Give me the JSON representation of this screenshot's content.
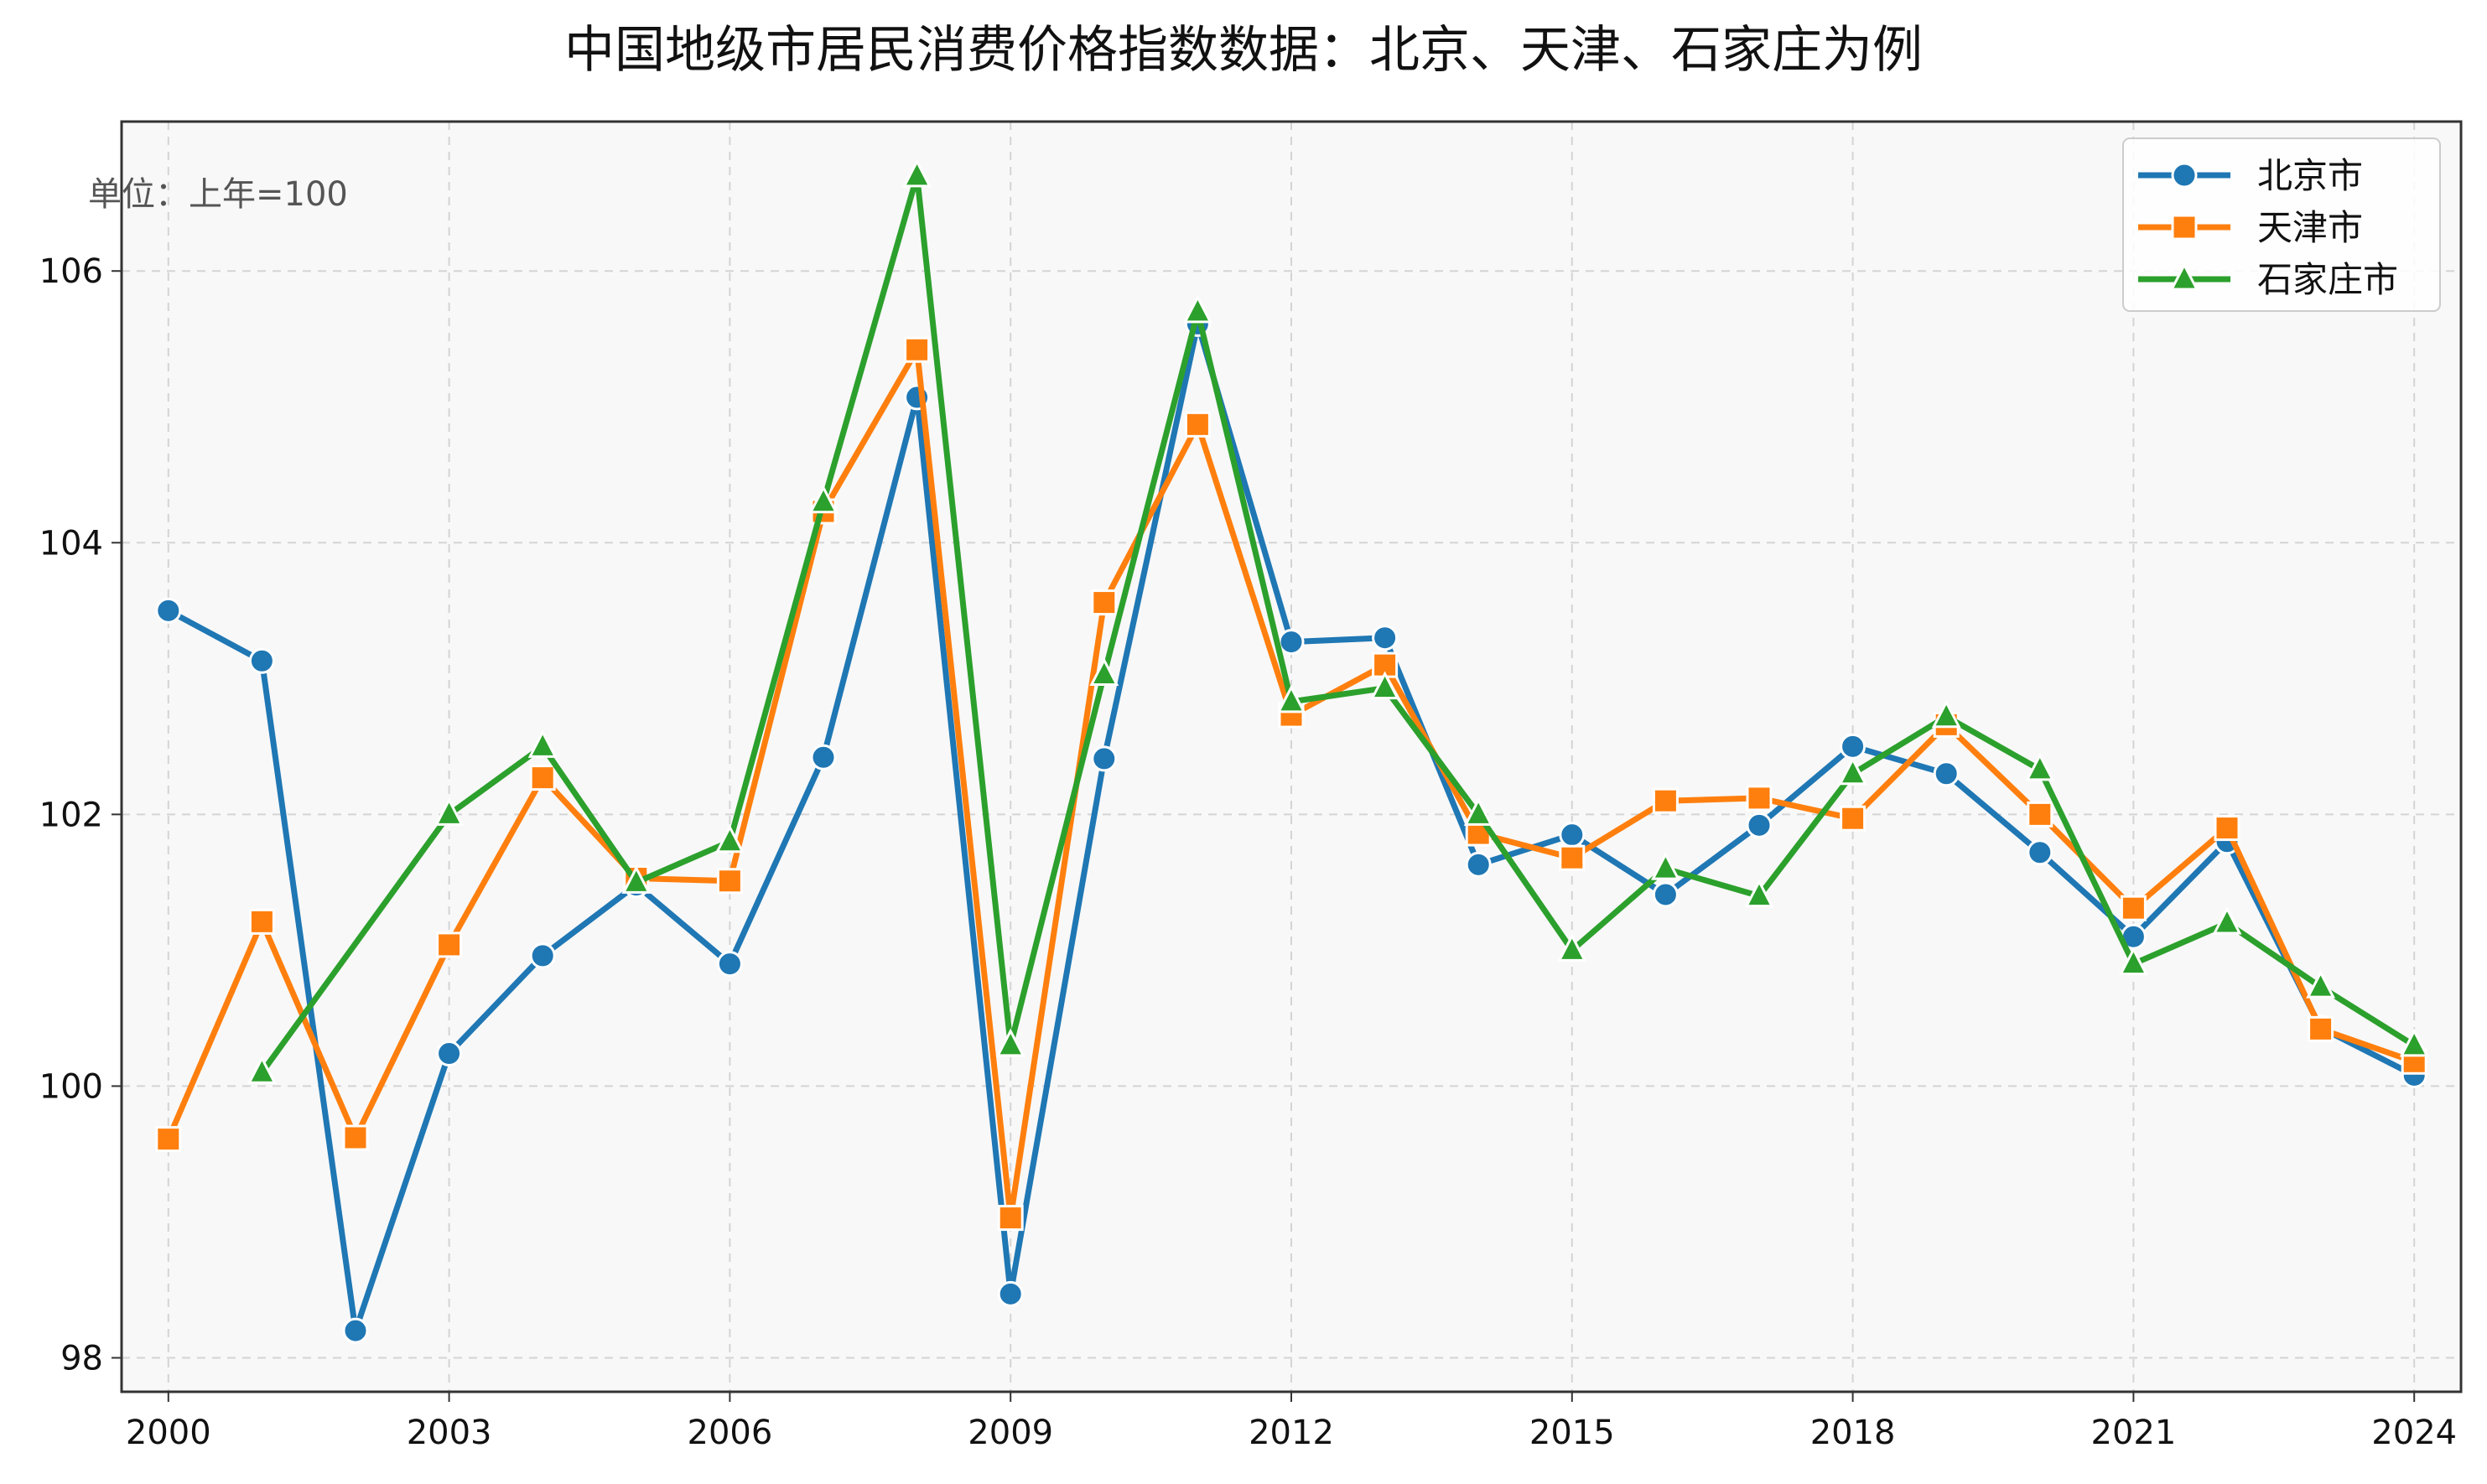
{
  "chart_data": {
    "type": "line",
    "title": "中国地级市居民消费价格指数数据：北京、天津、石家庄为例",
    "unit_note": "单位：上年=100",
    "xlabel": "",
    "ylabel": "",
    "x": [
      2000,
      2001,
      2002,
      2003,
      2004,
      2005,
      2006,
      2007,
      2008,
      2009,
      2010,
      2011,
      2012,
      2013,
      2014,
      2015,
      2016,
      2017,
      2018,
      2019,
      2020,
      2021,
      2022,
      2023,
      2024
    ],
    "x_ticks": [
      2000,
      2003,
      2006,
      2009,
      2012,
      2015,
      2018,
      2021,
      2024
    ],
    "y_ticks": [
      98,
      100,
      102,
      104,
      106
    ],
    "xlim": [
      1999.5,
      2024.5
    ],
    "ylim": [
      97.75,
      107.1
    ],
    "grid": true,
    "legend_position": "top-right",
    "series": [
      {
        "name": "北京市",
        "color": "#1f77b4",
        "marker": "circle",
        "values": [
          103.5,
          103.13,
          98.2,
          100.24,
          100.96,
          101.48,
          100.9,
          102.42,
          105.07,
          98.47,
          102.41,
          105.61,
          103.27,
          103.3,
          101.63,
          101.85,
          101.41,
          101.92,
          102.5,
          102.3,
          101.72,
          101.1,
          101.8,
          100.43,
          100.08
        ]
      },
      {
        "name": "天津市",
        "color": "#ff7f0e",
        "marker": "square",
        "values": [
          99.61,
          101.21,
          99.62,
          101.04,
          102.27,
          101.53,
          101.51,
          104.23,
          105.42,
          99.03,
          103.56,
          104.87,
          102.73,
          103.1,
          101.86,
          101.68,
          102.1,
          102.12,
          101.97,
          102.66,
          102.0,
          101.31,
          101.9,
          100.42,
          100.18
        ]
      },
      {
        "name": "石家庄市",
        "color": "#2ca02c",
        "marker": "triangle",
        "values": [
          null,
          100.1,
          null,
          102.0,
          102.5,
          101.5,
          101.8,
          104.3,
          106.7,
          100.3,
          103.03,
          105.7,
          102.83,
          102.93,
          102.0,
          101.0,
          101.6,
          101.4,
          102.3,
          102.72,
          102.33,
          100.9,
          101.2,
          100.73,
          100.3
        ]
      }
    ]
  }
}
